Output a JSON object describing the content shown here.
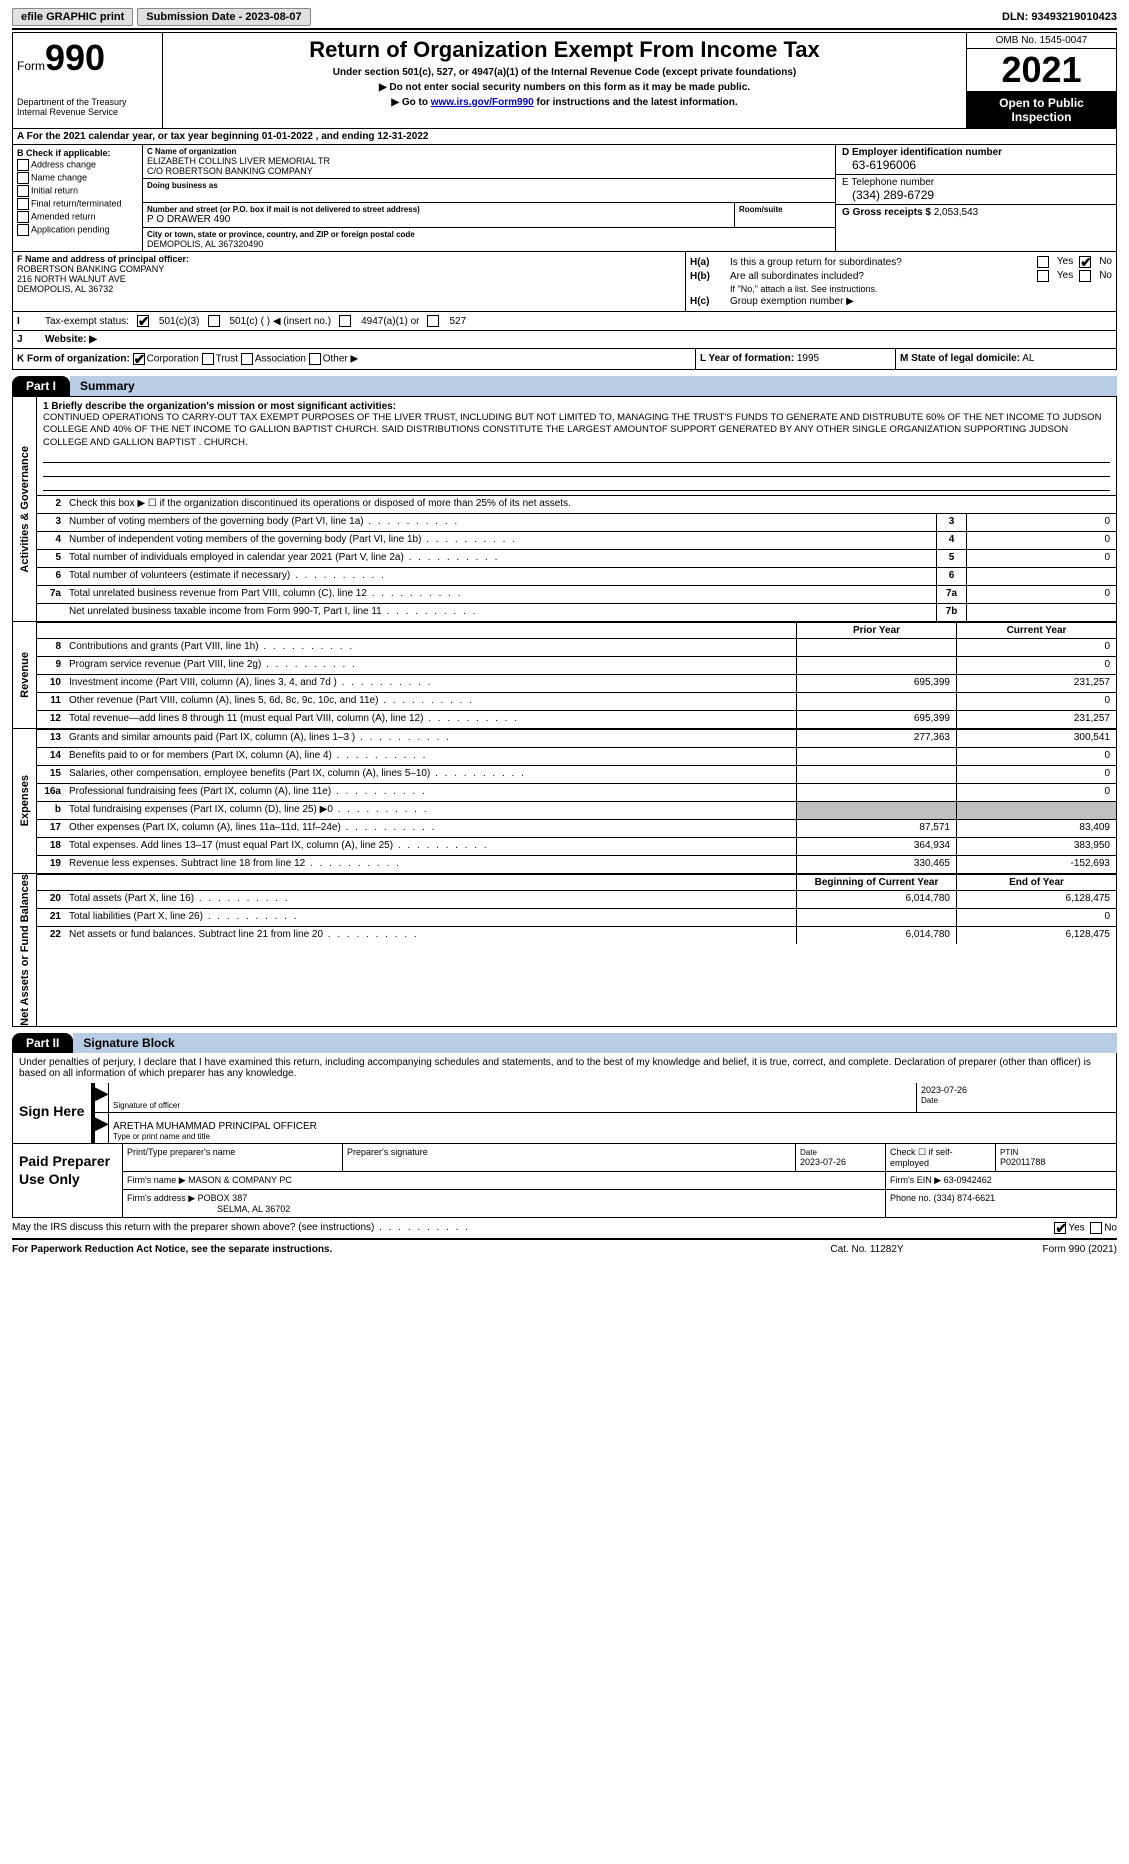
{
  "topbar": {
    "efile": "efile GRAPHIC print",
    "submission": "Submission Date - 2023-08-07",
    "dln": "DLN: 93493219010423"
  },
  "header": {
    "form_word": "Form",
    "form_num": "990",
    "dept": "Department of the Treasury",
    "irs": "Internal Revenue Service",
    "title": "Return of Organization Exempt From Income Tax",
    "sub1": "Under section 501(c), 527, or 4947(a)(1) of the Internal Revenue Code (except private foundations)",
    "sub2": "▶ Do not enter social security numbers on this form as it may be made public.",
    "sub3_pre": "▶ Go to ",
    "sub3_link": "www.irs.gov/Form990",
    "sub3_post": " for instructions and the latest information.",
    "omb": "OMB No. 1545-0047",
    "year": "2021",
    "opub": "Open to Public Inspection"
  },
  "rowA": "A For the 2021 calendar year, or tax year beginning 01-01-2022   , and ending 12-31-2022",
  "colB": {
    "lab": "B Check if applicable:",
    "items": [
      "Address change",
      "Name change",
      "Initial return",
      "Final return/terminated",
      "Amended return",
      "Application pending"
    ]
  },
  "colC": {
    "name_lab": "C Name of organization",
    "name1": "ELIZABETH COLLINS LIVER MEMORIAL TR",
    "name2": "C/O ROBERTSON BANKING COMPANY",
    "dba_lab": "Doing business as",
    "addr_lab": "Number and street (or P.O. box if mail is not delivered to street address)",
    "addr": "P O DRAWER 490",
    "room_lab": "Room/suite",
    "city_lab": "City or town, state or province, country, and ZIP or foreign postal code",
    "city": "DEMOPOLIS, AL  367320490"
  },
  "colDE": {
    "d_lab": "D Employer identification number",
    "d_val": "63-6196006",
    "e_lab": "E Telephone number",
    "e_val": "(334) 289-6729",
    "g_lab": "G Gross receipts $",
    "g_val": "2,053,543"
  },
  "colF": {
    "lab": "F  Name and address of principal officer:",
    "l1": "ROBERTSON BANKING COMPANY",
    "l2": "216 NORTH WALNUT AVE",
    "l3": "DEMOPOLIS, AL  36732"
  },
  "colH": {
    "ha_lab": "H(a)",
    "ha_txt": "Is this a group return for subordinates?",
    "hb_lab": "H(b)",
    "hb_txt": "Are all subordinates included?",
    "hb_note": "If \"No,\" attach a list. See instructions.",
    "hc_lab": "H(c)",
    "hc_txt": "Group exemption number ▶",
    "yes": "Yes",
    "no": "No"
  },
  "rowI": {
    "lab": "I",
    "txt": "Tax-exempt status:",
    "o1": "501(c)(3)",
    "o2": "501(c) (  ) ◀ (insert no.)",
    "o3": "4947(a)(1) or",
    "o4": "527"
  },
  "rowJ": {
    "lab": "J",
    "txt": "Website: ▶"
  },
  "rowK": {
    "lab": "K Form of organization:",
    "o1": "Corporation",
    "o2": "Trust",
    "o3": "Association",
    "o4": "Other ▶"
  },
  "rowL": {
    "lab": "L Year of formation:",
    "val": "1995"
  },
  "rowM": {
    "lab": "M State of legal domicile:",
    "val": "AL"
  },
  "parts": {
    "p1": "Part I",
    "p1t": "Summary",
    "p2": "Part II",
    "p2t": "Signature Block"
  },
  "vert": {
    "ag": "Activities & Governance",
    "rev": "Revenue",
    "exp": "Expenses",
    "nab": "Net Assets or Fund Balances"
  },
  "mission": {
    "lab": "1  Briefly describe the organization's mission or most significant activities:",
    "txt": "CONTINUED OPERATIONS TO CARRY-OUT TAX EXEMPT PURPOSES OF THE LIVER TRUST, INCLUDING BUT NOT LIMITED TO, MANAGING THE TRUST'S FUNDS TO GENERATE AND DISTRUBUTE 60% OF THE NET INCOME TO JUDSON COLLEGE AND 40% OF THE NET INCOME TO GALLION BAPTIST CHURCH. SAID DISTRIBUTIONS CONSTITUTE THE LARGEST AMOUNTOF SUPPORT GENERATED BY ANY OTHER SINGLE ORGANIZATION SUPPORTING JUDSON COLLEGE AND GALLION BAPTIST . CHURCH."
  },
  "lines_ag": [
    {
      "n": "2",
      "d": "Check this box ▶ ☐  if the organization discontinued its operations or disposed of more than 25% of its net assets."
    },
    {
      "n": "3",
      "d": "Number of voting members of the governing body (Part VI, line 1a)",
      "c": "3",
      "v": "0"
    },
    {
      "n": "4",
      "d": "Number of independent voting members of the governing body (Part VI, line 1b)",
      "c": "4",
      "v": "0"
    },
    {
      "n": "5",
      "d": "Total number of individuals employed in calendar year 2021 (Part V, line 2a)",
      "c": "5",
      "v": "0"
    },
    {
      "n": "6",
      "d": "Total number of volunteers (estimate if necessary)",
      "c": "6",
      "v": ""
    },
    {
      "n": "7a",
      "d": "Total unrelated business revenue from Part VIII, column (C), line 12",
      "c": "7a",
      "v": "0"
    },
    {
      "n": "",
      "d": "Net unrelated business taxable income from Form 990-T, Part I, line 11",
      "c": "7b",
      "v": ""
    }
  ],
  "col_hdr": {
    "prior": "Prior Year",
    "current": "Current Year",
    "boy": "Beginning of Current Year",
    "eoy": "End of Year"
  },
  "lines_rev": [
    {
      "n": "8",
      "d": "Contributions and grants (Part VIII, line 1h)",
      "p": "",
      "c": "0"
    },
    {
      "n": "9",
      "d": "Program service revenue (Part VIII, line 2g)",
      "p": "",
      "c": "0"
    },
    {
      "n": "10",
      "d": "Investment income (Part VIII, column (A), lines 3, 4, and 7d )",
      "p": "695,399",
      "c": "231,257"
    },
    {
      "n": "11",
      "d": "Other revenue (Part VIII, column (A), lines 5, 6d, 8c, 9c, 10c, and 11e)",
      "p": "",
      "c": "0"
    },
    {
      "n": "12",
      "d": "Total revenue—add lines 8 through 11 (must equal Part VIII, column (A), line 12)",
      "p": "695,399",
      "c": "231,257"
    }
  ],
  "lines_exp": [
    {
      "n": "13",
      "d": "Grants and similar amounts paid (Part IX, column (A), lines 1–3 )",
      "p": "277,363",
      "c": "300,541"
    },
    {
      "n": "14",
      "d": "Benefits paid to or for members (Part IX, column (A), line 4)",
      "p": "",
      "c": "0"
    },
    {
      "n": "15",
      "d": "Salaries, other compensation, employee benefits (Part IX, column (A), lines 5–10)",
      "p": "",
      "c": "0"
    },
    {
      "n": "16a",
      "d": "Professional fundraising fees (Part IX, column (A), line 11e)",
      "p": "",
      "c": "0"
    },
    {
      "n": "b",
      "d": "Total fundraising expenses (Part IX, column (D), line 25) ▶0",
      "p": "grey",
      "c": "grey"
    },
    {
      "n": "17",
      "d": "Other expenses (Part IX, column (A), lines 11a–11d, 11f–24e)",
      "p": "87,571",
      "c": "83,409"
    },
    {
      "n": "18",
      "d": "Total expenses. Add lines 13–17 (must equal Part IX, column (A), line 25)",
      "p": "364,934",
      "c": "383,950"
    },
    {
      "n": "19",
      "d": "Revenue less expenses. Subtract line 18 from line 12",
      "p": "330,465",
      "c": "-152,693"
    }
  ],
  "lines_nab": [
    {
      "n": "20",
      "d": "Total assets (Part X, line 16)",
      "p": "6,014,780",
      "c": "6,128,475"
    },
    {
      "n": "21",
      "d": "Total liabilities (Part X, line 26)",
      "p": "",
      "c": "0"
    },
    {
      "n": "22",
      "d": "Net assets or fund balances. Subtract line 21 from line 20",
      "p": "6,014,780",
      "c": "6,128,475"
    }
  ],
  "sig": {
    "intro": "Under penalties of perjury, I declare that I have examined this return, including accompanying schedules and statements, and to the best of my knowledge and belief, it is true, correct, and complete. Declaration of preparer (other than officer) is based on all information of which preparer has any knowledge.",
    "sign_here": "Sign Here",
    "sig_lab": "Signature of officer",
    "date": "2023-07-26",
    "date_lab": "Date",
    "name": "ARETHA MUHAMMAD  PRINCIPAL OFFICER",
    "name_lab": "Type or print name and title"
  },
  "prep": {
    "title": "Paid Preparer Use Only",
    "h1": "Print/Type preparer's name",
    "h2": "Preparer's signature",
    "h3_lab": "Date",
    "h3": "2023-07-26",
    "h4": "Check ☐ if self-employed",
    "h5_lab": "PTIN",
    "h5": "P02011788",
    "firm_lab": "Firm's name    ▶",
    "firm": "MASON & COMPANY PC",
    "ein_lab": "Firm's EIN ▶",
    "ein": "63-0942462",
    "addr_lab": "Firm's address ▶",
    "addr1": "POBOX 387",
    "addr2": "SELMA, AL  36702",
    "phone_lab": "Phone no.",
    "phone": "(334) 874-6621"
  },
  "footer": {
    "may": "May the IRS discuss this return with the preparer shown above? (see instructions)",
    "yes": "Yes",
    "no": "No",
    "pra": "For Paperwork Reduction Act Notice, see the separate instructions.",
    "cat": "Cat. No. 11282Y",
    "form": "Form 990 (2021)"
  }
}
